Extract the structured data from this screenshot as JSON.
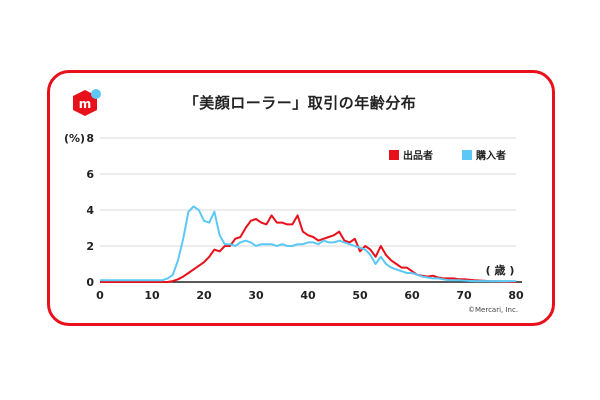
{
  "title": "「美顔ローラー」取引の年齢分布",
  "copyright": "©Mercari, Inc.",
  "colors": {
    "border": "#e8101a",
    "seller": "#e8101a",
    "buyer": "#5bc8f5"
  },
  "chart_data": {
    "type": "line",
    "title": "「美顔ローラー」取引の年齢分布",
    "xlabel": "( 歳 )",
    "ylabel": "(%)",
    "xlim": [
      0,
      80
    ],
    "ylim": [
      0,
      8
    ],
    "xticks": [
      "0",
      "10",
      "20",
      "30",
      "40",
      "50",
      "60",
      "70",
      "80"
    ],
    "yticks": [
      "0",
      "2",
      "4",
      "6",
      "8"
    ],
    "grid": true,
    "legend_position": "top-right",
    "series": [
      {
        "name": "出品者",
        "color": "#e8101a",
        "x": [
          0,
          5,
          10,
          12,
          13,
          14,
          15,
          16,
          17,
          18,
          19,
          20,
          21,
          22,
          23,
          24,
          25,
          26,
          27,
          28,
          29,
          30,
          31,
          32,
          33,
          34,
          35,
          36,
          37,
          38,
          39,
          40,
          41,
          42,
          43,
          44,
          45,
          46,
          47,
          48,
          49,
          50,
          51,
          52,
          53,
          54,
          55,
          56,
          57,
          58,
          59,
          60,
          61,
          62,
          63,
          64,
          65,
          66,
          67,
          68,
          69,
          70,
          72,
          75,
          78,
          80
        ],
        "y": [
          0,
          0,
          0,
          0,
          0,
          0.05,
          0.15,
          0.3,
          0.5,
          0.7,
          0.9,
          1.1,
          1.4,
          1.8,
          1.7,
          2.0,
          2.0,
          2.4,
          2.5,
          3.0,
          3.4,
          3.5,
          3.3,
          3.2,
          3.7,
          3.3,
          3.3,
          3.2,
          3.2,
          3.7,
          2.8,
          2.6,
          2.5,
          2.3,
          2.4,
          2.5,
          2.6,
          2.8,
          2.3,
          2.2,
          2.4,
          1.7,
          2.0,
          1.8,
          1.4,
          2.0,
          1.5,
          1.2,
          1.0,
          0.8,
          0.8,
          0.6,
          0.4,
          0.35,
          0.3,
          0.35,
          0.25,
          0.2,
          0.2,
          0.2,
          0.15,
          0.15,
          0.1,
          0.05,
          0.03,
          0
        ]
      },
      {
        "name": "購入者",
        "color": "#5bc8f5",
        "x": [
          0,
          5,
          10,
          12,
          13,
          14,
          15,
          16,
          17,
          18,
          19,
          20,
          21,
          22,
          23,
          24,
          25,
          26,
          27,
          28,
          29,
          30,
          31,
          32,
          33,
          34,
          35,
          36,
          37,
          38,
          39,
          40,
          41,
          42,
          43,
          44,
          45,
          46,
          47,
          48,
          49,
          50,
          51,
          52,
          53,
          54,
          55,
          56,
          57,
          58,
          59,
          60,
          61,
          62,
          63,
          64,
          65,
          66,
          67,
          68,
          69,
          70,
          72,
          75,
          78,
          80
        ],
        "y": [
          0.1,
          0.1,
          0.1,
          0.1,
          0.2,
          0.4,
          1.2,
          2.4,
          3.9,
          4.2,
          4.0,
          3.4,
          3.3,
          3.9,
          2.6,
          2.1,
          2.1,
          2.0,
          2.2,
          2.3,
          2.2,
          2.0,
          2.1,
          2.1,
          2.1,
          2.0,
          2.1,
          2.0,
          2.0,
          2.1,
          2.1,
          2.2,
          2.2,
          2.1,
          2.3,
          2.2,
          2.2,
          2.3,
          2.2,
          2.1,
          2.0,
          1.9,
          1.8,
          1.5,
          1.0,
          1.4,
          1.0,
          0.8,
          0.7,
          0.6,
          0.5,
          0.5,
          0.4,
          0.3,
          0.25,
          0.2,
          0.2,
          0.15,
          0.1,
          0.1,
          0.1,
          0.08,
          0.05,
          0.05,
          0.05,
          0.05
        ]
      }
    ]
  }
}
